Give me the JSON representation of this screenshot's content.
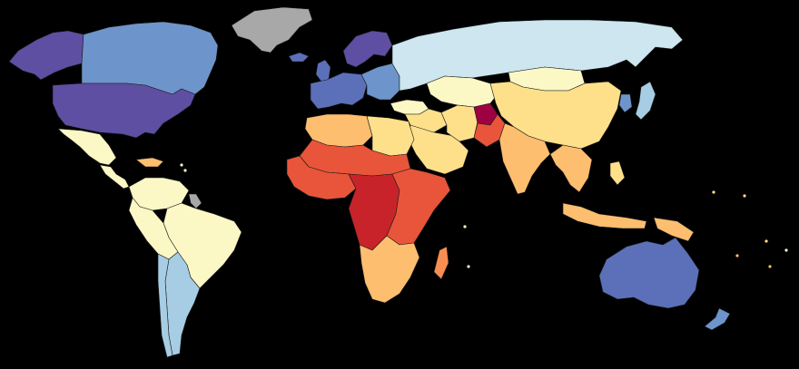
{
  "map": {
    "kind": "choropleth world map",
    "background": "#000000",
    "border_color": "#1a1a1a",
    "legend": "none shown",
    "scale_colors": {
      "c1": "#5e4fa2",
      "c2": "#5b70b8",
      "c3": "#6d95cb",
      "c4": "#a6cde3",
      "c5": "#cde6ef",
      "c6": "#fbf8c6",
      "c7": "#fee08b",
      "c8": "#fdbe6f",
      "c9": "#f98e52",
      "c10": "#e8553a",
      "c11": "#c8232a",
      "c12": "#9e0142",
      "nodata": "#a8a8a8"
    },
    "regions": [
      {
        "name": "greenland",
        "color": "nodata"
      },
      {
        "name": "canada",
        "color": "c3"
      },
      {
        "name": "alaska",
        "color": "c1"
      },
      {
        "name": "usa",
        "color": "c1"
      },
      {
        "name": "mexico",
        "color": "c6"
      },
      {
        "name": "central-america",
        "color": "c6"
      },
      {
        "name": "caribbean",
        "color": "c8"
      },
      {
        "name": "colombia-venezuela",
        "color": "c6"
      },
      {
        "name": "guianas",
        "color": "nodata"
      },
      {
        "name": "brazil",
        "color": "c6"
      },
      {
        "name": "andes",
        "color": "c6"
      },
      {
        "name": "argentina",
        "color": "c4"
      },
      {
        "name": "chile",
        "color": "c4"
      },
      {
        "name": "iceland",
        "color": "c2"
      },
      {
        "name": "uk-ireland",
        "color": "c2"
      },
      {
        "name": "scandinavia",
        "color": "c1"
      },
      {
        "name": "western-europe",
        "color": "c2"
      },
      {
        "name": "eastern-europe",
        "color": "c3"
      },
      {
        "name": "russia",
        "color": "c5"
      },
      {
        "name": "turkey",
        "color": "c6"
      },
      {
        "name": "central-asia",
        "color": "c6"
      },
      {
        "name": "mongolia",
        "color": "c6"
      },
      {
        "name": "china",
        "color": "c7"
      },
      {
        "name": "japan",
        "color": "c4"
      },
      {
        "name": "korea",
        "color": "c3"
      },
      {
        "name": "middle-east",
        "color": "c7"
      },
      {
        "name": "arabia",
        "color": "c7"
      },
      {
        "name": "iran",
        "color": "c7"
      },
      {
        "name": "afghanistan",
        "color": "c12"
      },
      {
        "name": "pakistan",
        "color": "c10"
      },
      {
        "name": "india",
        "color": "c8"
      },
      {
        "name": "se-asia",
        "color": "c8"
      },
      {
        "name": "indonesia",
        "color": "c8"
      },
      {
        "name": "philippines",
        "color": "c7"
      },
      {
        "name": "papua",
        "color": "c8"
      },
      {
        "name": "australia",
        "color": "c2"
      },
      {
        "name": "new-zealand",
        "color": "c3"
      },
      {
        "name": "north-africa",
        "color": "c8"
      },
      {
        "name": "egypt-libya",
        "color": "c7"
      },
      {
        "name": "sahel",
        "color": "c10"
      },
      {
        "name": "west-africa",
        "color": "c10"
      },
      {
        "name": "central-africa",
        "color": "c11"
      },
      {
        "name": "east-africa",
        "color": "c10"
      },
      {
        "name": "southern-africa",
        "color": "c8"
      },
      {
        "name": "madagascar",
        "color": "c9"
      }
    ]
  }
}
